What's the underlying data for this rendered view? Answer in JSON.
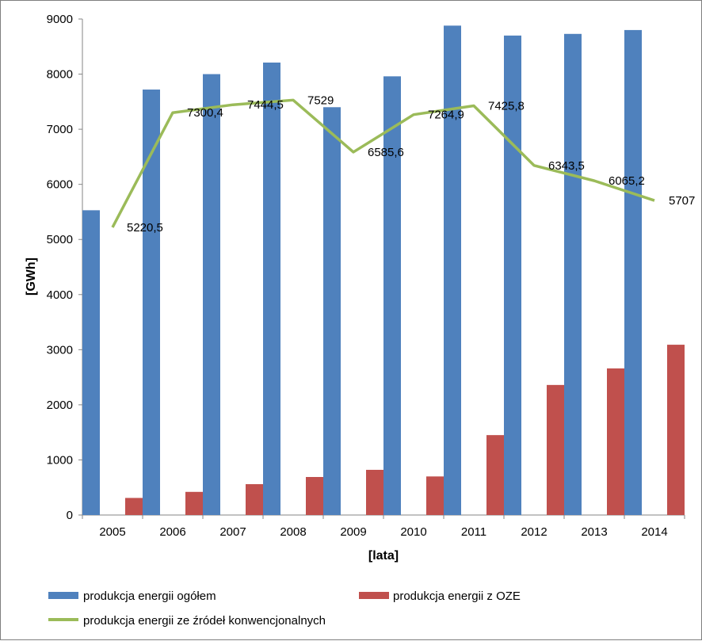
{
  "chart_data": {
    "type": "bar",
    "categories": [
      "2005",
      "2006",
      "2007",
      "2008",
      "2009",
      "2010",
      "2011",
      "2012",
      "2013",
      "2014"
    ],
    "series": [
      {
        "name": "produkcja energii ogółem",
        "kind": "bar",
        "color": "#4f81bd",
        "values": [
          5530,
          7720,
          8000,
          8210,
          7400,
          7960,
          8880,
          8700,
          8730,
          8800
        ]
      },
      {
        "name": "produkcja energii z OZE",
        "kind": "bar",
        "color": "#c0504d",
        "values": [
          310,
          420,
          560,
          690,
          820,
          700,
          1450,
          2360,
          2660,
          3090
        ]
      },
      {
        "name": "produkcja energii ze źródeł konwencjonalnych",
        "kind": "line",
        "color": "#9bbb59",
        "values": [
          5220.5,
          7300.4,
          7444.5,
          7529,
          6585.6,
          7264.9,
          7425.8,
          6343.5,
          6065.2,
          5707
        ],
        "labels": [
          "5220,5",
          "7300,4",
          "7444,5",
          "7529",
          "6585,6",
          "7264,9",
          "7425,8",
          "6343,5",
          "6065,2",
          "5707"
        ]
      }
    ],
    "xlabel": "[lata]",
    "ylabel": "[GWh]",
    "ylim": [
      0,
      9000
    ],
    "yticks": [
      "0",
      "1000",
      "2000",
      "3000",
      "4000",
      "5000",
      "6000",
      "7000",
      "8000",
      "9000"
    ],
    "grid": false,
    "legend": "bottom"
  }
}
